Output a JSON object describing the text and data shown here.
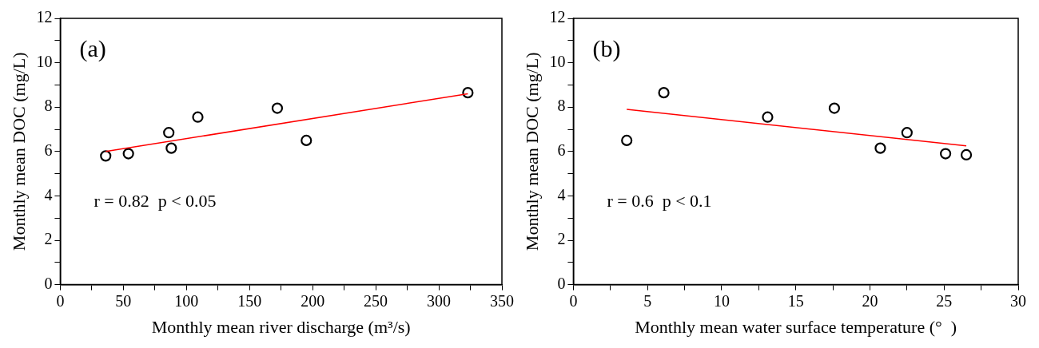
{
  "chart_data": [
    {
      "type": "scatter",
      "xlabel": "Monthly mean river discharge (m³/s)",
      "ylabel": "Monthly mean DOC (mg/L)",
      "annotations": [
        "(a)",
        "r = 0.82  p < 0.05"
      ],
      "series": [
        {
          "color": "#000000",
          "marker": "circle",
          "x": [
            36,
            54,
            86,
            88,
            109,
            172,
            195,
            323
          ],
          "values": [
            5.8,
            5.9,
            6.85,
            6.15,
            7.55,
            7.95,
            6.5,
            8.65
          ]
        },
        {
          "type": "line",
          "color": "#ff0000",
          "marker": "none",
          "line_style": "solid",
          "x": [
            36,
            323
          ],
          "values": [
            6.0,
            8.6
          ]
        }
      ],
      "xlim": [
        0,
        350
      ],
      "xticks": [
        0,
        {
          "value": 25,
          "label": null
        },
        50,
        {
          "value": 75,
          "label": null
        },
        100,
        {
          "value": 125,
          "label": null
        },
        150,
        {
          "value": 175,
          "label": null
        },
        200,
        {
          "value": 225,
          "label": null
        },
        250,
        {
          "value": 275,
          "label": null
        },
        300,
        {
          "value": 325,
          "label": null
        },
        350
      ],
      "ylim": [
        0,
        12
      ],
      "yticks": [
        0,
        {
          "value": 1,
          "label": null
        },
        2,
        {
          "value": 3,
          "label": null
        },
        4,
        {
          "value": 5,
          "label": null
        },
        6,
        {
          "value": 7,
          "label": null
        },
        8,
        {
          "value": 9,
          "label": null
        },
        10,
        {
          "value": 11,
          "label": null
        },
        12
      ],
      "grid": false,
      "legend": false
    },
    {
      "type": "scatter",
      "xlabel": "Monthly mean water surface temperature (°  )",
      "ylabel": "Monthly mean DOC (mg/L)",
      "annotations": [
        "(b)",
        "r = 0.6  p < 0.1"
      ],
      "series": [
        {
          "color": "#000000",
          "marker": "circle",
          "x": [
            3.6,
            6.1,
            13.1,
            17.6,
            20.7,
            22.5,
            25.1,
            26.5
          ],
          "values": [
            6.5,
            8.65,
            7.55,
            7.95,
            6.15,
            6.85,
            5.9,
            5.85
          ]
        },
        {
          "type": "line",
          "color": "#ff0000",
          "marker": "none",
          "line_style": "solid",
          "x": [
            3.6,
            26.5
          ],
          "values": [
            7.9,
            6.25
          ]
        }
      ],
      "xlim": [
        0,
        30
      ],
      "xticks": [
        0,
        {
          "value": 2.5,
          "label": null
        },
        5,
        {
          "value": 7.5,
          "label": null
        },
        10,
        {
          "value": 12.5,
          "label": null
        },
        15,
        {
          "value": 17.5,
          "label": null
        },
        20,
        {
          "value": 22.5,
          "label": null
        },
        25,
        {
          "value": 27.5,
          "label": null
        },
        30
      ],
      "ylim": [
        0,
        12
      ],
      "yticks": [
        0,
        {
          "value": 1,
          "label": null
        },
        2,
        {
          "value": 3,
          "label": null
        },
        4,
        {
          "value": 5,
          "label": null
        },
        6,
        {
          "value": 7,
          "label": null
        },
        8,
        {
          "value": 9,
          "label": null
        },
        10,
        {
          "value": 11,
          "label": null
        },
        12
      ],
      "grid": false,
      "legend": false
    }
  ]
}
